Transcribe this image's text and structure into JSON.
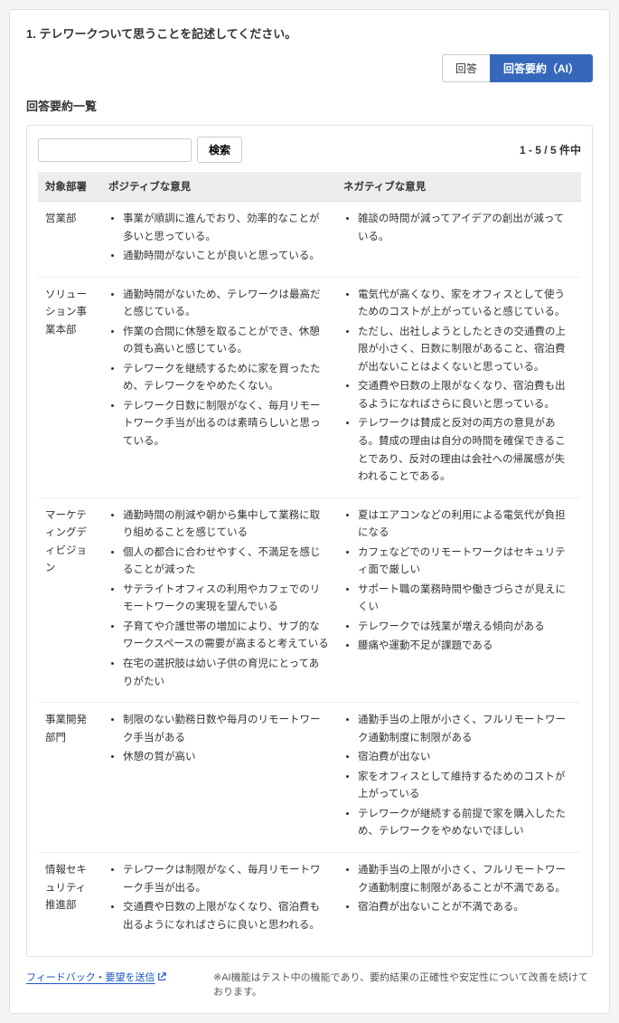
{
  "question": "1. テレワークついて思うことを記述してください。",
  "tabs": {
    "answers": "回答",
    "summary": "回答要約（AI）"
  },
  "section_title": "回答要約一覧",
  "search": {
    "placeholder": "",
    "button": "検索"
  },
  "pager": {
    "range": "1 - 5 / 5",
    "suffix": "件中"
  },
  "columns": {
    "dept": "対象部署",
    "positive": "ポジティブな意見",
    "negative": "ネガティブな意見"
  },
  "rows": [
    {
      "dept": "営業部",
      "positive": [
        "事業が順調に進んでおり、効率的なことが多いと思っている。",
        "通勤時間がないことが良いと思っている。"
      ],
      "negative": [
        "雑談の時間が減ってアイデアの創出が減っている。"
      ]
    },
    {
      "dept": "ソリューション事業本部",
      "positive": [
        "通勤時間がないため、テレワークは最高だと感じている。",
        "作業の合間に休憩を取ることができ、休憩の質も高いと感じている。",
        "テレワークを継続するために家を買ったため、テレワークをやめたくない。",
        "テレワーク日数に制限がなく、毎月リモートワーク手当が出るのは素晴らしいと思っている。"
      ],
      "negative": [
        "電気代が高くなり、家をオフィスとして使うためのコストが上がっていると感じている。",
        "ただし、出社しようとしたときの交通費の上限が小さく、日数に制限があること、宿泊費が出ないことはよくないと思っている。",
        "交通費や日数の上限がなくなり、宿泊費も出るようになればさらに良いと思っている。",
        "テレワークは賛成と反対の両方の意見がある。賛成の理由は自分の時間を確保できることであり、反対の理由は会社への帰属感が失われることである。"
      ]
    },
    {
      "dept": "マーケティングディビジョン",
      "positive": [
        "通勤時間の削減や朝から集中して業務に取り組めることを感じている",
        "個人の都合に合わせやすく、不満足を感じることが減った",
        "サテライトオフィスの利用やカフェでのリモートワークの実現を望んでいる",
        "子育てや介護世帯の増加により、サブ的なワークスペースの需要が高まると考えている",
        "在宅の選択肢は幼い子供の育児にとってありがたい"
      ],
      "negative": [
        "夏はエアコンなどの利用による電気代が負担になる",
        "カフェなどでのリモートワークはセキュリティ面で厳しい",
        "サポート職の業務時間や働きづらさが見えにくい",
        "テレワークでは残業が増える傾向がある",
        "腰痛や運動不足が課題である"
      ]
    },
    {
      "dept": "事業開発部門",
      "positive": [
        "制限のない勤務日数や毎月のリモートワーク手当がある",
        "休憩の質が高い"
      ],
      "negative": [
        "通勤手当の上限が小さく、フルリモートワーク通勤制度に制限がある",
        "宿泊費が出ない",
        "家をオフィスとして維持するためのコストが上がっている",
        "テレワークが継続する前提で家を購入したため、テレワークをやめないでほしい"
      ]
    },
    {
      "dept": "情報セキュリティ推進部",
      "positive": [
        "テレワークは制限がなく、毎月リモートワーク手当が出る。",
        "交通費や日数の上限がなくなり、宿泊費も出るようになればさらに良いと思われる。"
      ],
      "negative": [
        "通勤手当の上限が小さく、フルリモートワーク通勤制度に制限があることが不満である。",
        "宿泊費が出ないことが不満である。"
      ]
    }
  ],
  "footer": {
    "feedback": "フィードバック・要望を送信",
    "disclaimer": "※AI機能はテスト中の機能であり、要約結果の正確性や安定性について改善を続けております。"
  },
  "colors": {
    "accent": "#3568ba",
    "link": "#1a56c4",
    "header_bg": "#ededed",
    "border": "#e0e0e0"
  }
}
